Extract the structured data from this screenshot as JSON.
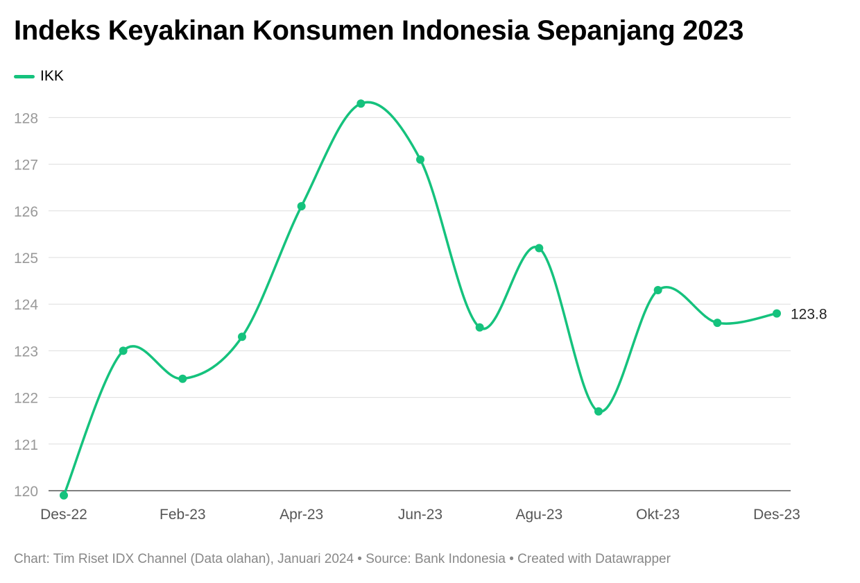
{
  "title": "Indeks Keyakinan Konsumen Indonesia Sepanjang 2023",
  "footer": "Chart: Tim Riset IDX Channel (Data olahan), Januari 2024 • Source: Bank Indonesia • Created with Datawrapper",
  "colors": {
    "line": "#15c27d",
    "grid": "#dddddd",
    "tick_text": "#999999",
    "x_tick_text": "#555555",
    "title": "#000000",
    "footer": "#888888"
  },
  "chart_data": {
    "type": "line",
    "title": "Indeks Keyakinan Konsumen Indonesia Sepanjang 2023",
    "xlabel": "",
    "ylabel": "",
    "x": [
      "Des-22",
      "Jan-23",
      "Feb-23",
      "Mar-23",
      "Apr-23",
      "Mei-23",
      "Jun-23",
      "Jul-23",
      "Agu-23",
      "Sep-23",
      "Okt-23",
      "Nov-23",
      "Des-23"
    ],
    "x_tick_labels": [
      "Des-22",
      "Feb-23",
      "Apr-23",
      "Jun-23",
      "Agu-23",
      "Okt-23",
      "Des-23"
    ],
    "y_ticks": [
      120,
      121,
      122,
      123,
      124,
      125,
      126,
      127,
      128
    ],
    "ylim": [
      120,
      128.5
    ],
    "grid": true,
    "legend_placement": "top-left",
    "series": [
      {
        "name": "IKK",
        "values": [
          119.9,
          123.0,
          122.4,
          123.3,
          126.1,
          128.3,
          127.1,
          123.5,
          125.2,
          121.7,
          124.3,
          123.6,
          123.8
        ],
        "end_label": "123.8"
      }
    ]
  }
}
